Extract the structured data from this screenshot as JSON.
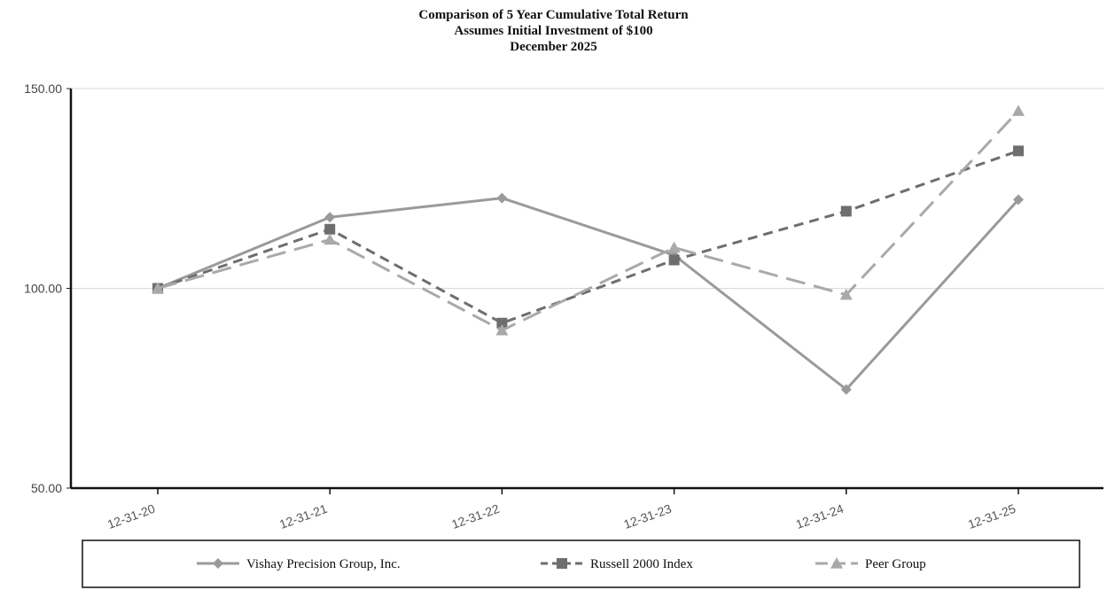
{
  "chart_data": {
    "type": "line",
    "title": "Comparison of 5 Year Cumulative Total Return",
    "subtitle": "Assumes Initial Investment of $100",
    "subtitle2": "December 2025",
    "xlabel": "",
    "ylabel": "",
    "categories": [
      "12-31-20",
      "12-31-21",
      "12-31-22",
      "12-31-23",
      "12-31-24",
      "12-31-25"
    ],
    "ylim": [
      50,
      150
    ],
    "yticks": [
      "50.00",
      "100.00",
      "150.00"
    ],
    "grid": "horizontal",
    "legend_position": "bottom",
    "series": [
      {
        "name": "Vishay Precision Group, Inc.",
        "values": [
          100.0,
          117.8,
          122.6,
          108.3,
          74.7,
          122.2
        ],
        "color": "#9a9a9a",
        "marker": "diamond",
        "dash": "solid"
      },
      {
        "name": "Russell 2000 Index",
        "values": [
          100.0,
          114.8,
          91.3,
          107.1,
          119.3,
          134.4
        ],
        "color": "#6e6e6e",
        "marker": "square",
        "dash": "short-dash"
      },
      {
        "name": "Peer Group",
        "values": [
          100.0,
          112.2,
          89.5,
          110.2,
          98.4,
          144.4
        ],
        "color": "#a9a9a9",
        "marker": "triangle",
        "dash": "long-dash"
      }
    ]
  }
}
